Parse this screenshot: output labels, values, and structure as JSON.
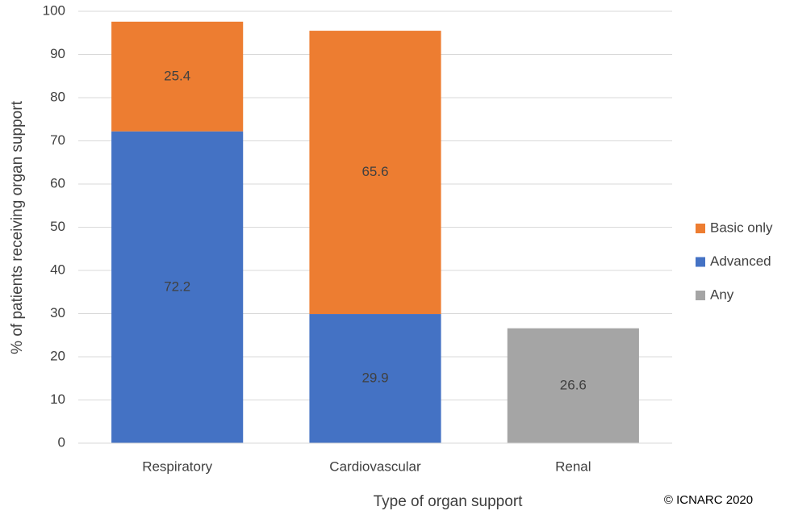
{
  "chart_data": {
    "type": "stacked_bar",
    "x_label": "Type of organ support",
    "y_label": "% of patients receiving organ support",
    "categories": [
      "Respiratory",
      "Cardiovascular",
      "Renal"
    ],
    "series": [
      {
        "name": "Basic only",
        "color": "#ed7d31",
        "values": [
          25.4,
          65.6,
          null
        ]
      },
      {
        "name": "Advanced",
        "color": "#4472c4",
        "values": [
          72.2,
          29.9,
          null
        ]
      },
      {
        "name": "Any",
        "color": "#a5a5a5",
        "values": [
          null,
          null,
          26.6
        ]
      }
    ],
    "ylim": [
      0,
      100
    ],
    "yticks": [
      0,
      10,
      20,
      30,
      40,
      50,
      60,
      70,
      80,
      90,
      100
    ],
    "grid": true,
    "legend": "right",
    "source": "© ICNARC 2020"
  }
}
